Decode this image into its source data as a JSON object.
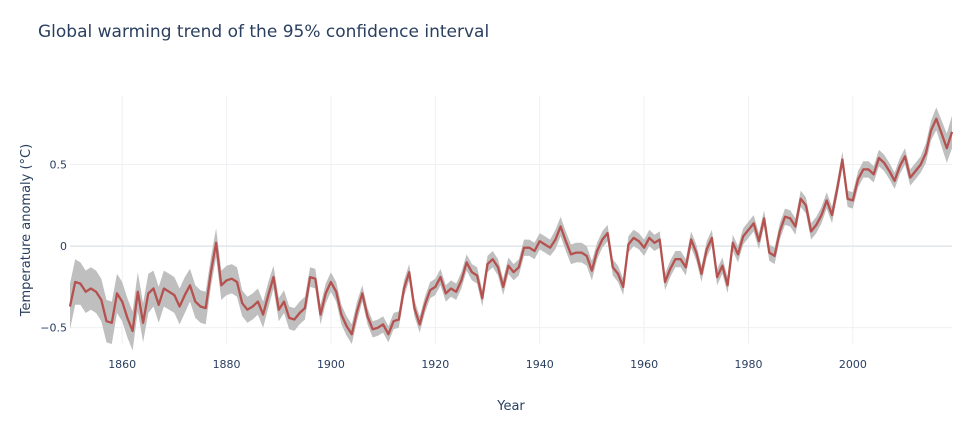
{
  "chart_data": {
    "type": "line",
    "title": "Global warming trend of the 95% confidence interval",
    "xlabel": "Year",
    "ylabel": "Temperature anomaly (°C)",
    "xlim": [
      1850,
      2019
    ],
    "ylim": [
      -0.6,
      0.92
    ],
    "x_ticks": [
      1860,
      1880,
      1900,
      1920,
      1940,
      1960,
      1980,
      2000
    ],
    "y_ticks": [
      -0.5,
      0,
      0.5
    ],
    "y_tick_labels": [
      "−0.5",
      "0",
      "0.5"
    ],
    "grid": true,
    "legend": "none",
    "colors": {
      "line": "#b5514f",
      "band": "#bfbfbf",
      "grid": "#eef0f3",
      "zero_line": "#e2e6ea"
    },
    "series": [
      {
        "x": [
          1850,
          1851,
          1852,
          1853,
          1854,
          1855,
          1856,
          1857,
          1858,
          1859,
          1860,
          1861,
          1862,
          1863,
          1864,
          1865,
          1866,
          1867,
          1868,
          1869,
          1870,
          1871,
          1872,
          1873,
          1874,
          1875,
          1876,
          1877,
          1878,
          1879,
          1880,
          1881,
          1882,
          1883,
          1884,
          1885,
          1886,
          1887,
          1888,
          1889,
          1890,
          1891,
          1892,
          1893,
          1894,
          1895,
          1896,
          1897,
          1898,
          1899,
          1900,
          1901,
          1902,
          1903,
          1904,
          1905,
          1906,
          1907,
          1908,
          1909,
          1910,
          1911,
          1912,
          1913,
          1914,
          1915,
          1916,
          1917,
          1918,
          1919,
          1920,
          1921,
          1922,
          1923,
          1924,
          1925,
          1926,
          1927,
          1928,
          1929,
          1930,
          1931,
          1932,
          1933,
          1934,
          1935,
          1936,
          1937,
          1938,
          1939,
          1940,
          1941,
          1942,
          1943,
          1944,
          1945,
          1946,
          1947,
          1948,
          1949,
          1950,
          1951,
          1952,
          1953,
          1954,
          1955,
          1956,
          1957,
          1958,
          1959,
          1960,
          1961,
          1962,
          1963,
          1964,
          1965,
          1966,
          1967,
          1968,
          1969,
          1970,
          1971,
          1972,
          1973,
          1974,
          1975,
          1976,
          1977,
          1978,
          1979,
          1980,
          1981,
          1982,
          1983,
          1984,
          1985,
          1986,
          1987,
          1988,
          1989,
          1990,
          1991,
          1992,
          1993,
          1994,
          1995,
          1996,
          1997,
          1998,
          1999,
          2000,
          2001,
          2002,
          2003,
          2004,
          2005,
          2006,
          2007,
          2008,
          2009,
          2010,
          2011,
          2012,
          2013,
          2014,
          2015,
          2016,
          2017,
          2018,
          2019
        ],
        "y": [
          -0.37,
          -0.22,
          -0.23,
          -0.28,
          -0.26,
          -0.28,
          -0.33,
          -0.46,
          -0.47,
          -0.29,
          -0.34,
          -0.44,
          -0.52,
          -0.28,
          -0.47,
          -0.29,
          -0.26,
          -0.36,
          -0.26,
          -0.28,
          -0.3,
          -0.37,
          -0.3,
          -0.24,
          -0.34,
          -0.37,
          -0.38,
          -0.16,
          0.02,
          -0.24,
          -0.21,
          -0.2,
          -0.22,
          -0.35,
          -0.39,
          -0.37,
          -0.34,
          -0.42,
          -0.3,
          -0.19,
          -0.39,
          -0.34,
          -0.44,
          -0.45,
          -0.41,
          -0.38,
          -0.19,
          -0.2,
          -0.42,
          -0.29,
          -0.22,
          -0.28,
          -0.42,
          -0.49,
          -0.54,
          -0.4,
          -0.29,
          -0.43,
          -0.51,
          -0.5,
          -0.48,
          -0.54,
          -0.46,
          -0.45,
          -0.26,
          -0.16,
          -0.38,
          -0.48,
          -0.36,
          -0.27,
          -0.25,
          -0.19,
          -0.29,
          -0.26,
          -0.28,
          -0.21,
          -0.1,
          -0.16,
          -0.18,
          -0.32,
          -0.11,
          -0.08,
          -0.13,
          -0.25,
          -0.12,
          -0.16,
          -0.13,
          -0.01,
          -0.01,
          -0.03,
          0.03,
          0.01,
          -0.01,
          0.04,
          0.12,
          0.03,
          -0.05,
          -0.04,
          -0.04,
          -0.06,
          -0.15,
          -0.03,
          0.04,
          0.08,
          -0.13,
          -0.17,
          -0.25,
          0.01,
          0.05,
          0.03,
          -0.01,
          0.05,
          0.02,
          0.04,
          -0.22,
          -0.14,
          -0.08,
          -0.08,
          -0.13,
          0.04,
          -0.04,
          -0.17,
          -0.02,
          0.05,
          -0.19,
          -0.12,
          -0.24,
          0.02,
          -0.05,
          0.06,
          0.1,
          0.14,
          0.03,
          0.17,
          -0.04,
          -0.06,
          0.09,
          0.18,
          0.17,
          0.12,
          0.29,
          0.25,
          0.09,
          0.13,
          0.19,
          0.28,
          0.19,
          0.35,
          0.53,
          0.29,
          0.28,
          0.41,
          0.47,
          0.47,
          0.44,
          0.54,
          0.51,
          0.46,
          0.4,
          0.49,
          0.55,
          0.42,
          0.46,
          0.5,
          0.57,
          0.71,
          0.78,
          0.69,
          0.6,
          0.7
        ],
        "ci_half_width": [
          0.14,
          0.14,
          0.13,
          0.13,
          0.13,
          0.13,
          0.13,
          0.13,
          0.13,
          0.12,
          0.12,
          0.12,
          0.12,
          0.12,
          0.12,
          0.12,
          0.11,
          0.11,
          0.11,
          0.11,
          0.11,
          0.11,
          0.11,
          0.1,
          0.1,
          0.1,
          0.1,
          0.09,
          0.09,
          0.09,
          0.09,
          0.09,
          0.09,
          0.08,
          0.08,
          0.08,
          0.08,
          0.08,
          0.08,
          0.07,
          0.07,
          0.07,
          0.07,
          0.07,
          0.07,
          0.07,
          0.06,
          0.06,
          0.06,
          0.06,
          0.06,
          0.06,
          0.06,
          0.06,
          0.06,
          0.06,
          0.05,
          0.05,
          0.05,
          0.05,
          0.05,
          0.05,
          0.05,
          0.05,
          0.05,
          0.05,
          0.05,
          0.05,
          0.05,
          0.05,
          0.05,
          0.05,
          0.05,
          0.05,
          0.05,
          0.05,
          0.05,
          0.05,
          0.05,
          0.05,
          0.05,
          0.05,
          0.05,
          0.05,
          0.05,
          0.05,
          0.05,
          0.05,
          0.05,
          0.05,
          0.05,
          0.05,
          0.05,
          0.06,
          0.06,
          0.06,
          0.06,
          0.06,
          0.06,
          0.06,
          0.06,
          0.05,
          0.05,
          0.05,
          0.05,
          0.05,
          0.05,
          0.05,
          0.05,
          0.05,
          0.05,
          0.05,
          0.05,
          0.05,
          0.05,
          0.05,
          0.05,
          0.05,
          0.05,
          0.05,
          0.05,
          0.05,
          0.05,
          0.05,
          0.05,
          0.05,
          0.05,
          0.05,
          0.05,
          0.05,
          0.05,
          0.05,
          0.05,
          0.05,
          0.05,
          0.05,
          0.05,
          0.05,
          0.05,
          0.05,
          0.05,
          0.05,
          0.05,
          0.05,
          0.05,
          0.05,
          0.05,
          0.05,
          0.05,
          0.05,
          0.05,
          0.05,
          0.05,
          0.05,
          0.05,
          0.05,
          0.05,
          0.05,
          0.05,
          0.05,
          0.05,
          0.05,
          0.05,
          0.05,
          0.06,
          0.06,
          0.07,
          0.08,
          0.09,
          0.1
        ]
      }
    ]
  }
}
